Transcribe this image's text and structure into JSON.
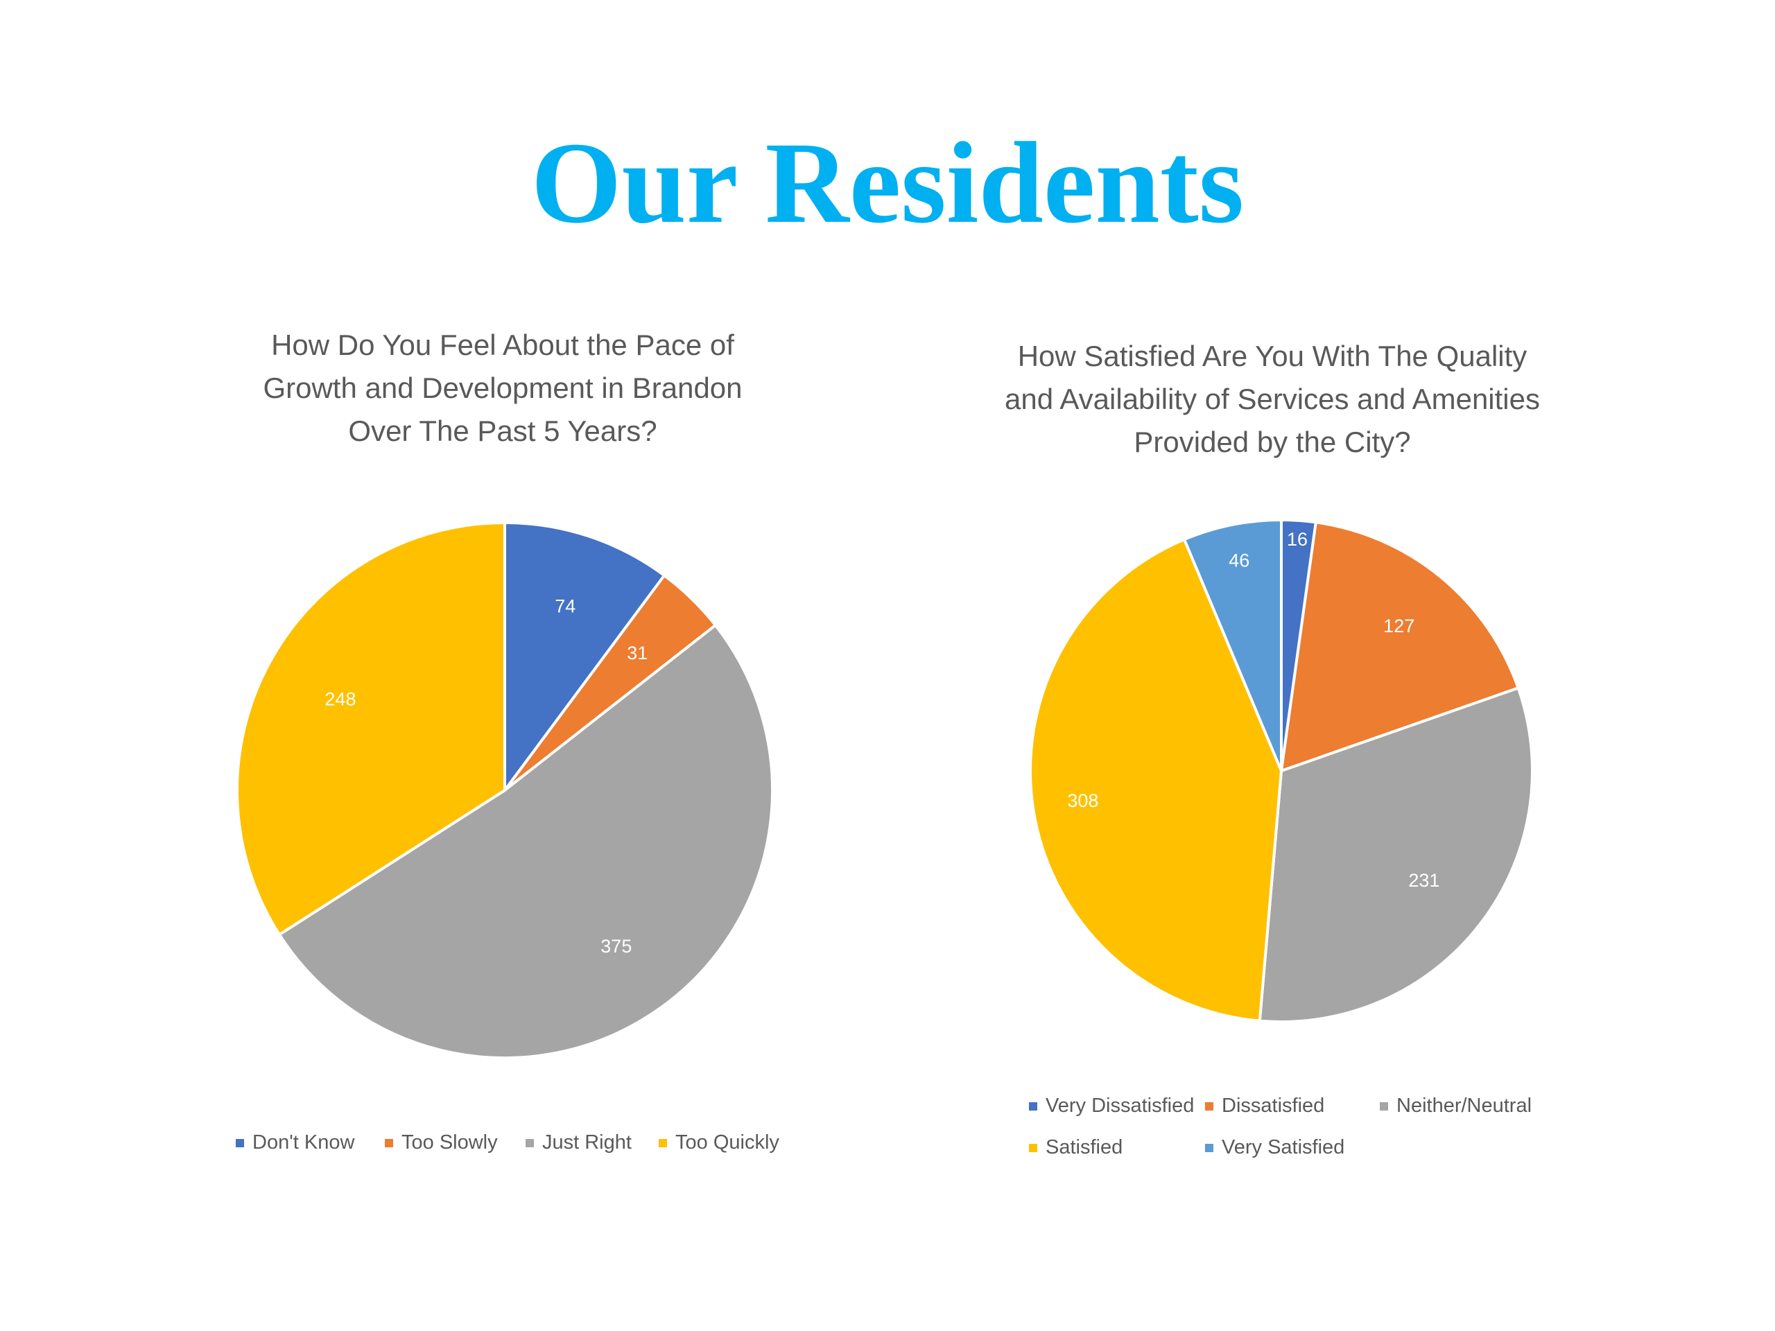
{
  "title": "Our Residents",
  "chart_data": [
    {
      "type": "pie",
      "title": "How Do You Feel About the Pace of\nGrowth and Development in Brandon\nOver The Past 5 Years?",
      "categories": [
        "Don't Know",
        "Too Slowly",
        "Just Right",
        "Too Quickly"
      ],
      "values": [
        74,
        31,
        375,
        248
      ],
      "colors": [
        "#4472C4",
        "#ED7D31",
        "#A5A5A5",
        "#FFC000"
      ],
      "data_labels": [
        "74",
        "31",
        "375",
        "248"
      ],
      "legend_position": "bottom"
    },
    {
      "type": "pie",
      "title": "How Satisfied Are You With The Quality\nand Availability of Services and Amenities\nProvided by the City?",
      "categories": [
        "Very Dissatisfied",
        "Dissatisfied",
        "Neither/Neutral",
        "Satisfied",
        "Very Satisfied"
      ],
      "values": [
        16,
        127,
        231,
        308,
        46
      ],
      "colors": [
        "#4472C4",
        "#ED7D31",
        "#A5A5A5",
        "#FFC000",
        "#5B9BD5"
      ],
      "data_labels": [
        "16",
        "127",
        "231",
        "308",
        "46"
      ],
      "legend_position": "bottom"
    }
  ]
}
